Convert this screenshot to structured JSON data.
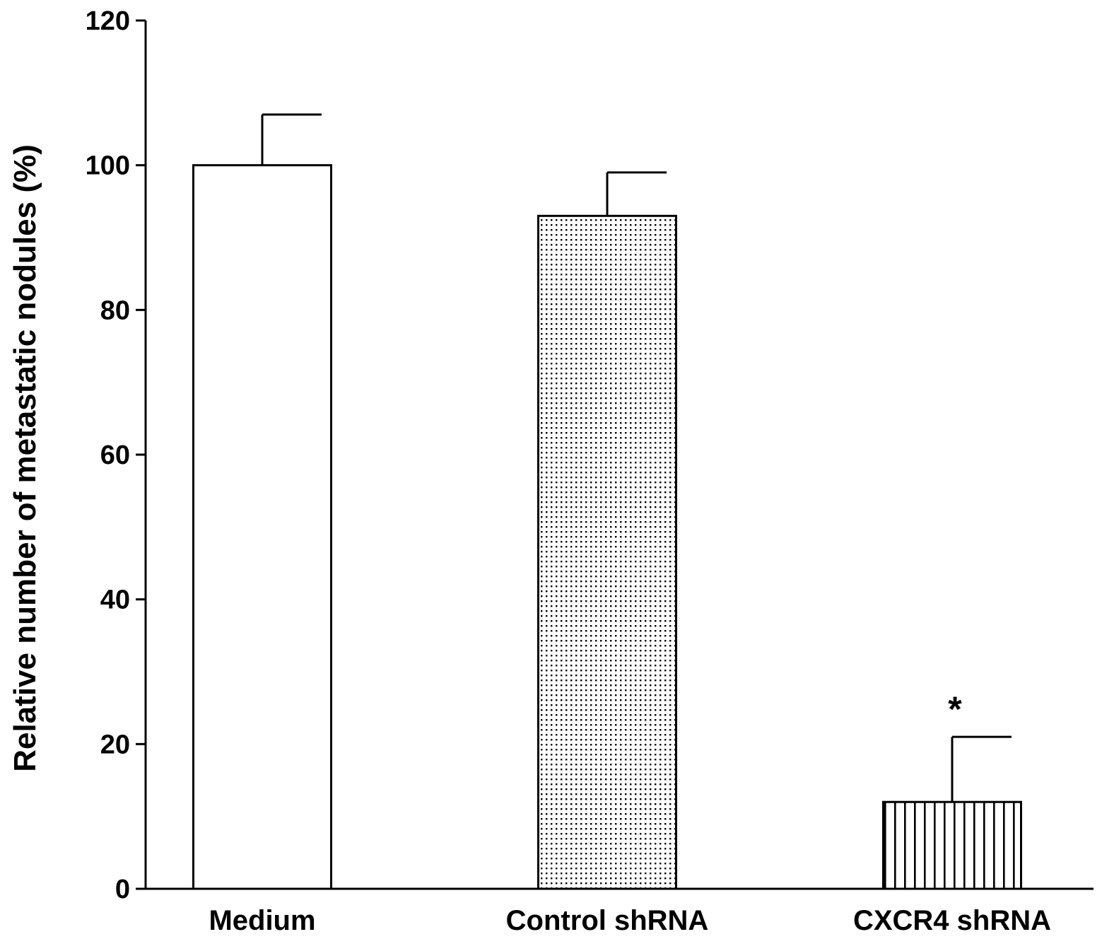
{
  "chart_data": {
    "type": "bar",
    "title": "",
    "xlabel": "",
    "ylabel": "Relative number of metastatic nodules (%)",
    "ylim": [
      0,
      120
    ],
    "yticks": [
      0,
      20,
      40,
      60,
      80,
      100,
      120
    ],
    "grid": false,
    "categories": [
      "Medium",
      "Control shRNA",
      "CXCR4 shRNA"
    ],
    "values": [
      100,
      93,
      12
    ],
    "errors": [
      7,
      6,
      9
    ],
    "fill_patterns": [
      "none",
      "dots",
      "vertical-lines"
    ],
    "annotations": [
      {
        "category": "CXCR4 shRNA",
        "text": "*"
      }
    ],
    "colors": {
      "bar_stroke": "#000000",
      "bar_fill": "#ffffff",
      "pattern": "#000000"
    }
  }
}
